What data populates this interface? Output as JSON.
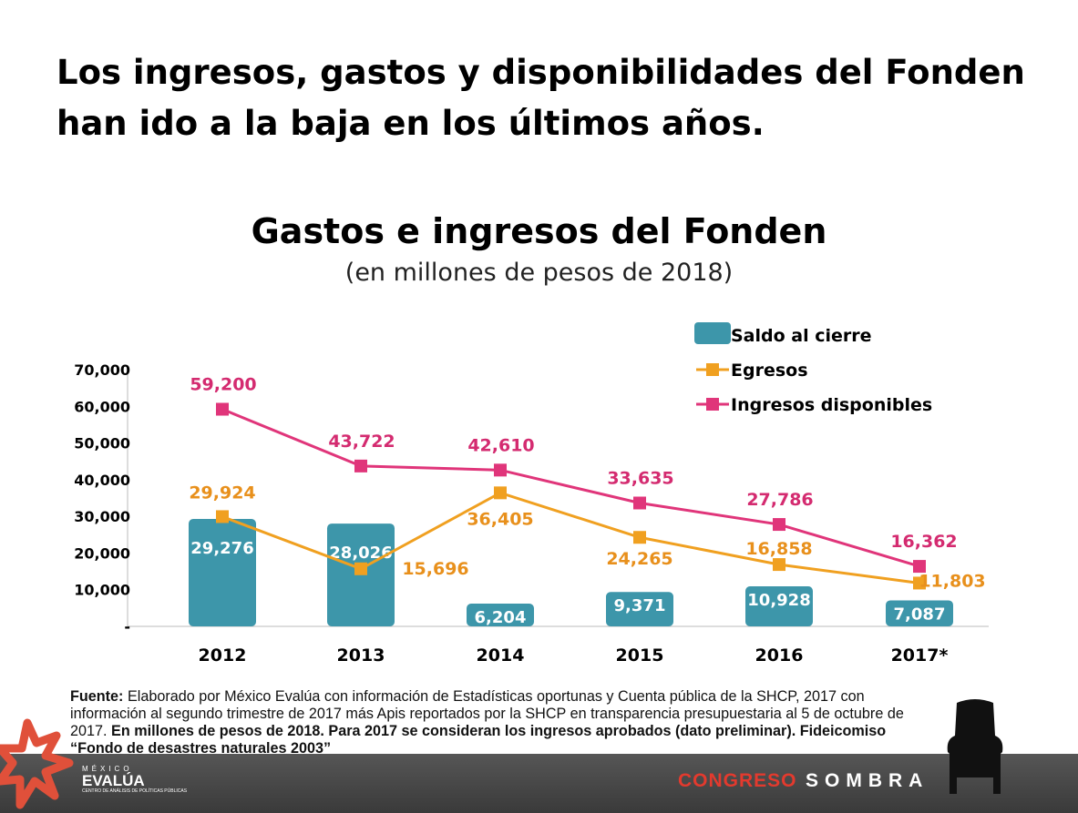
{
  "slide": {
    "title": "Los ingresos, gastos y disponibilidades del Fonden han ido a la baja en los últimos años."
  },
  "source": {
    "label": "Fuente:",
    "text": " Elaborado por México Evalúa con información de Estadísticas oportunas y Cuenta pública de la SHCP, 2017 con información al segundo trimestre de 2017 más Apis reportados por la SHCP en transparencia presupuestaria al 5 de octubre de 2017. ",
    "bold_text": "En millones de pesos de 2018. Para 2017 se consideran los ingresos aprobados (dato preliminar). Fideicomiso “Fondo de desastres naturales 2003”"
  },
  "footer": {
    "brand_red": "CONGRESO",
    "brand_white": "SOMBRA",
    "logo_line1": "MÉXICO",
    "logo_line2": "EVALÚA",
    "logo_line3": "CENTRO DE ANÁLISIS DE POLÍTICAS PÚBLICAS"
  },
  "chart_data": {
    "type": "bar",
    "title": "Gastos e ingresos del Fonden",
    "subtitle": "(en millones de pesos de 2018)",
    "categories": [
      "2012",
      "2013",
      "2014",
      "2015",
      "2016",
      "2017*"
    ],
    "ylim": [
      0,
      70000
    ],
    "y_ticks": [
      0,
      10000,
      20000,
      30000,
      40000,
      50000,
      60000,
      70000
    ],
    "y_tick_labels": [
      "-",
      "10,000",
      "20,000",
      "30,000",
      "40,000",
      "50,000",
      "60,000",
      "70,000"
    ],
    "grid": false,
    "legend_position": "top-right",
    "series": [
      {
        "name": "Saldo al cierre",
        "kind": "bar",
        "color": "#3d96aa",
        "values": [
          29276,
          28026,
          6204,
          9371,
          10928,
          7087
        ],
        "labels": [
          "29,276",
          "28,026",
          "6,204",
          "9,371",
          "10,928",
          "7,087"
        ]
      },
      {
        "name": "Egresos",
        "kind": "line",
        "color": "#f0a020",
        "label_color": "#e8901c",
        "values": [
          29924,
          15696,
          36405,
          24265,
          16858,
          11803
        ],
        "labels": [
          "29,924",
          "15,696",
          "36,405",
          "24,265",
          "16,858",
          "11,803"
        ]
      },
      {
        "name": "Ingresos disponibles",
        "kind": "line",
        "color": "#e0357a",
        "label_color": "#d42b70",
        "values": [
          59200,
          43722,
          42610,
          33635,
          27786,
          16362
        ],
        "labels": [
          "59,200",
          "43,722",
          "42,610",
          "33,635",
          "27,786",
          "16,362"
        ]
      }
    ]
  }
}
